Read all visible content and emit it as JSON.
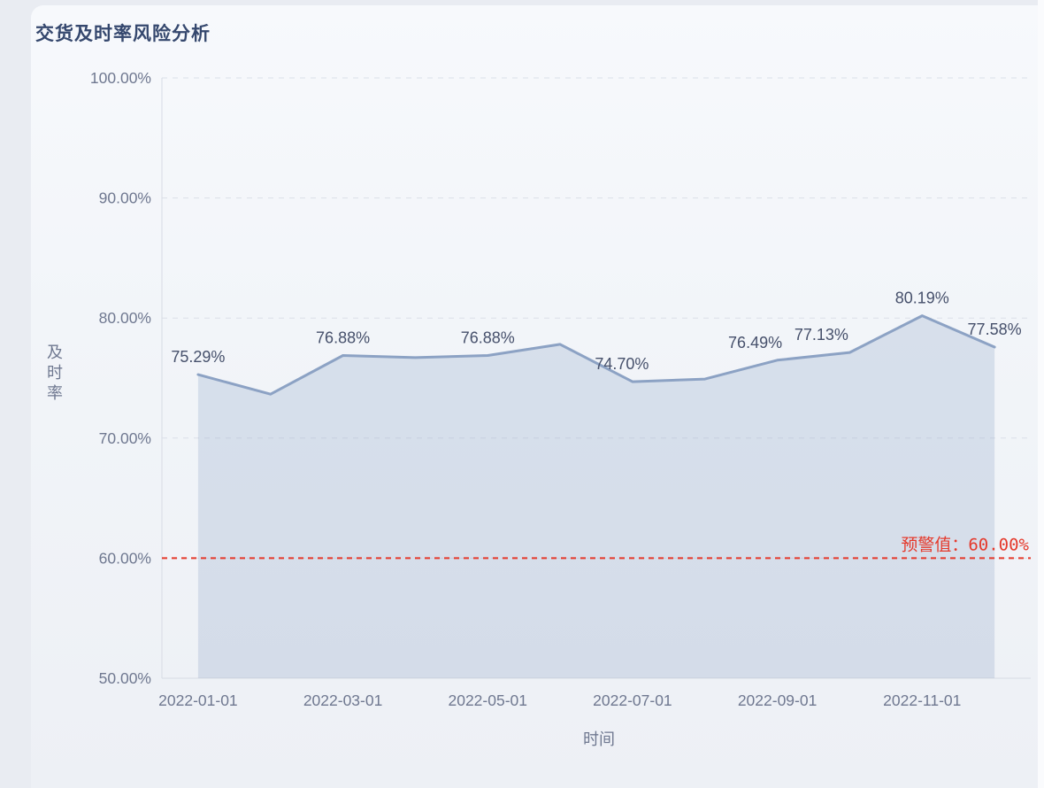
{
  "page": {
    "title": "交货及时率风险分析"
  },
  "chart_data": {
    "type": "area",
    "title": "交货及时率风险分析",
    "xlabel": "时间",
    "ylabel": "及时率",
    "x": [
      "2022-01-01",
      "2022-02-01",
      "2022-03-01",
      "2022-04-01",
      "2022-05-01",
      "2022-06-01",
      "2022-07-01",
      "2022-08-01",
      "2022-09-01",
      "2022-10-01",
      "2022-11-01",
      "2022-12-01"
    ],
    "x_tick_labels": [
      "2022-01-01",
      "2022-03-01",
      "2022-05-01",
      "2022-07-01",
      "2022-09-01",
      "2022-11-01"
    ],
    "series": [
      {
        "name": "及时率",
        "values": [
          75.29,
          73.66,
          76.88,
          76.7,
          76.88,
          77.81,
          74.7,
          74.92,
          76.49,
          77.13,
          80.19,
          77.58
        ],
        "point_labels": [
          "75.29%",
          null,
          "76.88%",
          null,
          "76.88%",
          null,
          "74.70%",
          null,
          "76.49%",
          "77.13%",
          "80.19%",
          "77.58%"
        ]
      }
    ],
    "ylim": [
      50,
      100
    ],
    "y_ticks": [
      50,
      60,
      70,
      80,
      90,
      100
    ],
    "y_tick_labels": [
      "50.00%",
      "60.00%",
      "70.00%",
      "80.00%",
      "90.00%",
      "100.00%"
    ],
    "grid": true,
    "legend": "none",
    "warning_line": {
      "value": 60,
      "label": "预警值：60.00%"
    },
    "colors": {
      "line": "#8ca2c4",
      "area": "rgba(140,162,196,0.26)",
      "point_label": "#46506b",
      "axis_text": "#6f7890",
      "grid_line": "#dbdfe8",
      "axis_line": "#d7dbe4",
      "title": "#35486e",
      "warning": "#e5392b"
    }
  }
}
